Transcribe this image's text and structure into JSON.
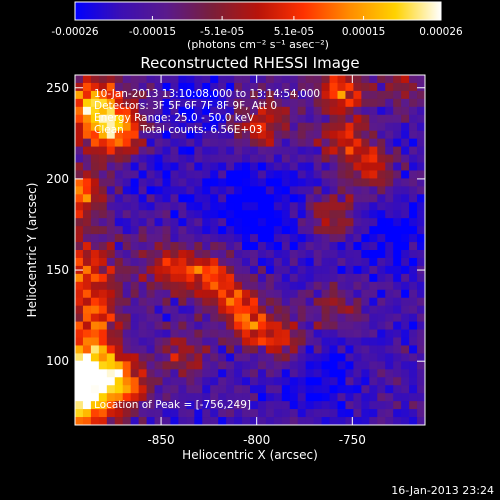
{
  "chart_data": {
    "type": "heatmap",
    "title": "Reconstructed RHESSI Image",
    "xlabel": "Heliocentric X (arcsec)",
    "ylabel": "Heliocentric Y (arcsec)",
    "xlim": [
      -895,
      -712
    ],
    "ylim": [
      65,
      257
    ],
    "x_ticks": [
      -850,
      -800,
      -750
    ],
    "x_tick_labels": [
      "-850",
      "-800",
      "-750"
    ],
    "y_ticks": [
      100,
      150,
      200,
      250
    ],
    "y_tick_labels": [
      "100",
      "150",
      "200",
      "250"
    ],
    "colorbar": {
      "min": -0.00026,
      "max": 0.00026,
      "ticks": [
        -0.00026,
        -0.00015,
        -5.1e-05,
        5.1e-05,
        0.00015,
        0.00026
      ],
      "tick_labels": [
        "-0.00026",
        "-0.00015",
        "-5.1e-05",
        "5.1e-05",
        "0.00015",
        "0.00026"
      ],
      "units_text": "(photons cm⁻² s⁻¹ asec⁻²)",
      "colormap": [
        "#0000ff",
        "#3b0fb4",
        "#5a1a8c",
        "#7a1f3a",
        "#b8140a",
        "#ff3200",
        "#ff8c00",
        "#ffd200",
        "#ffffff"
      ]
    },
    "grid": false,
    "annotations": [
      "10-Jan-2013 13:10:08.000 to 13:14:54.000",
      "Detectors: 3F 5F 6F 7F 8F 9F, Att 0",
      "Energy Range: 25.0 - 50.0 keV",
      "Clean     Total counts: 6.56E+03",
      "Location of Peak = [-756,249]"
    ],
    "peak": [
      -756,
      249
    ],
    "footer_date": "16-Jan-2013 23:24",
    "grid_size": [
      44,
      44
    ],
    "generator": {
      "base": 0.16,
      "blobs": [
        [
          -895,
          78,
          0.78,
          13
        ],
        [
          -890,
          100,
          0.62,
          11
        ],
        [
          -872,
          88,
          0.55,
          10
        ],
        [
          -893,
          150,
          0.45,
          14
        ],
        [
          -884,
          124,
          0.36,
          10
        ],
        [
          -893,
          192,
          0.55,
          10
        ],
        [
          -885,
          240,
          0.65,
          12
        ],
        [
          -873,
          225,
          0.5,
          10
        ],
        [
          -846,
          152,
          0.34,
          10
        ],
        [
          -826,
          148,
          0.44,
          9
        ],
        [
          -812,
          132,
          0.42,
          9
        ],
        [
          -801,
          118,
          0.38,
          9
        ],
        [
          -838,
          104,
          0.32,
          9
        ],
        [
          -798,
          228,
          0.38,
          12
        ],
        [
          -760,
          180,
          0.35,
          10
        ],
        [
          -753,
          220,
          0.4,
          10
        ],
        [
          -756,
          249,
          0.5,
          9
        ],
        [
          -740,
          205,
          0.34,
          8
        ],
        [
          -722,
          250,
          0.3,
          8
        ],
        [
          -785,
          112,
          0.3,
          8
        ],
        [
          -760,
          130,
          0.26,
          9
        ]
      ],
      "dips": [
        [
          -800,
          190,
          0.2,
          20
        ],
        [
          -830,
          240,
          0.14,
          12
        ],
        [
          -735,
          170,
          0.18,
          14
        ],
        [
          -765,
          90,
          0.16,
          14
        ],
        [
          -855,
          205,
          0.1,
          12
        ]
      ],
      "noise": 0.11,
      "seed": 7
    }
  }
}
